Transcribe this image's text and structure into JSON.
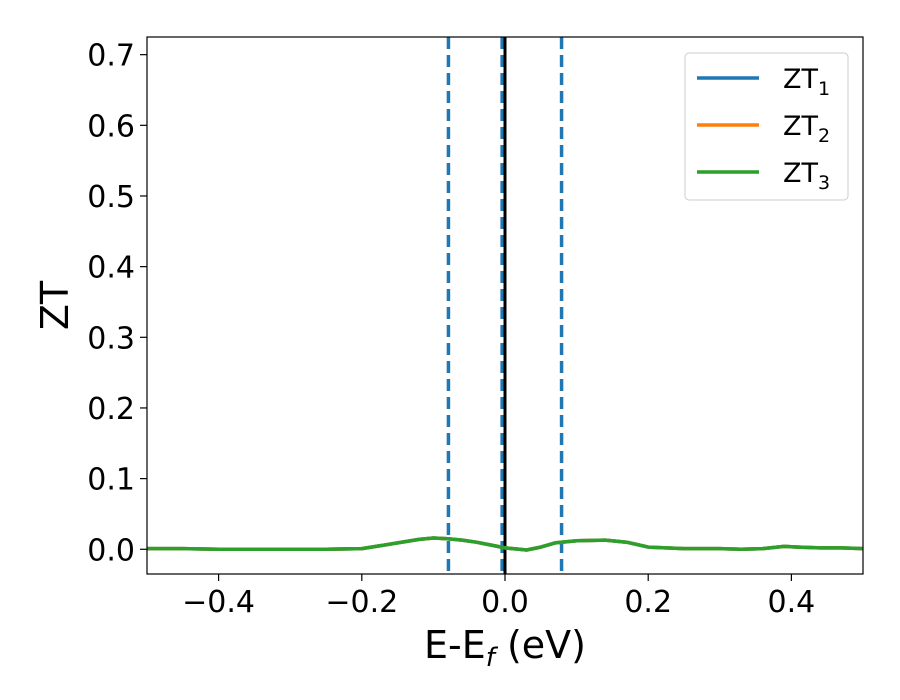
{
  "chart_data": {
    "type": "line",
    "xlabel": {
      "main": "E-E",
      "sub": "f",
      "suffix": " (eV)"
    },
    "ylabel": "ZT",
    "xlim": [
      -0.5,
      0.5
    ],
    "ylim": [
      -0.035,
      0.725
    ],
    "xticks": [
      -0.4,
      -0.2,
      0.0,
      0.2,
      0.4
    ],
    "xtick_labels": [
      "−0.4",
      "−0.2",
      "0.0",
      "0.2",
      "0.4"
    ],
    "yticks": [
      0.0,
      0.1,
      0.2,
      0.3,
      0.4,
      0.5,
      0.6,
      0.7
    ],
    "ytick_labels": [
      "0.0",
      "0.1",
      "0.2",
      "0.3",
      "0.4",
      "0.5",
      "0.6",
      "0.7"
    ],
    "grid": false,
    "legend_position": "top-right",
    "series": [
      {
        "name": "ZT",
        "sub": "1",
        "color": "#1f77b4",
        "x": [
          -0.5,
          -0.45,
          -0.4,
          -0.35,
          -0.3,
          -0.25,
          -0.2,
          -0.18,
          -0.15,
          -0.12,
          -0.1,
          -0.08,
          -0.06,
          -0.04,
          -0.02,
          0.0,
          0.02,
          0.03,
          0.05,
          0.07,
          0.1,
          0.14,
          0.17,
          0.2,
          0.25,
          0.3,
          0.33,
          0.36,
          0.39,
          0.41,
          0.44,
          0.47,
          0.5
        ],
        "y": [
          0.001,
          0.001,
          0.0,
          0.0,
          0.0,
          0.0,
          0.001,
          0.004,
          0.009,
          0.014,
          0.016,
          0.015,
          0.013,
          0.01,
          0.006,
          0.002,
          0.0,
          -0.001,
          0.003,
          0.009,
          0.012,
          0.013,
          0.01,
          0.003,
          0.001,
          0.001,
          0.0,
          0.001,
          0.004,
          0.003,
          0.002,
          0.002,
          0.001
        ]
      },
      {
        "name": "ZT",
        "sub": "2",
        "color": "#ff7f0e",
        "x": [
          -0.5,
          -0.45,
          -0.4,
          -0.35,
          -0.3,
          -0.25,
          -0.2,
          -0.18,
          -0.15,
          -0.12,
          -0.1,
          -0.08,
          -0.06,
          -0.04,
          -0.02,
          0.0,
          0.02,
          0.03,
          0.05,
          0.07,
          0.1,
          0.14,
          0.17,
          0.2,
          0.25,
          0.3,
          0.33,
          0.36,
          0.39,
          0.41,
          0.44,
          0.47,
          0.5
        ],
        "y": [
          0.001,
          0.001,
          0.0,
          0.0,
          0.0,
          0.0,
          0.001,
          0.004,
          0.009,
          0.014,
          0.016,
          0.015,
          0.013,
          0.01,
          0.006,
          0.002,
          0.0,
          -0.001,
          0.003,
          0.009,
          0.012,
          0.013,
          0.01,
          0.003,
          0.001,
          0.001,
          0.0,
          0.001,
          0.004,
          0.003,
          0.002,
          0.002,
          0.001
        ]
      },
      {
        "name": "ZT",
        "sub": "3",
        "color": "#2ca02c",
        "x": [
          -0.5,
          -0.45,
          -0.4,
          -0.35,
          -0.3,
          -0.25,
          -0.2,
          -0.18,
          -0.15,
          -0.12,
          -0.1,
          -0.08,
          -0.06,
          -0.04,
          -0.02,
          0.0,
          0.02,
          0.03,
          0.05,
          0.07,
          0.1,
          0.14,
          0.17,
          0.2,
          0.25,
          0.3,
          0.33,
          0.36,
          0.39,
          0.41,
          0.44,
          0.47,
          0.5
        ],
        "y": [
          0.001,
          0.001,
          0.0,
          0.0,
          0.0,
          0.0,
          0.001,
          0.004,
          0.009,
          0.014,
          0.016,
          0.015,
          0.013,
          0.01,
          0.006,
          0.002,
          0.0,
          -0.001,
          0.003,
          0.009,
          0.012,
          0.013,
          0.01,
          0.003,
          0.001,
          0.001,
          0.0,
          0.001,
          0.004,
          0.003,
          0.002,
          0.002,
          0.001
        ]
      }
    ],
    "vertical_lines": [
      {
        "x": -0.079,
        "color": "#1f77b4",
        "style": "dashed"
      },
      {
        "x": -0.004,
        "color": "#1f77b4",
        "style": "dashed"
      },
      {
        "x": 0.079,
        "color": "#1f77b4",
        "style": "dashed"
      },
      {
        "x": 0.0,
        "color": "#000000",
        "style": "solid"
      }
    ]
  }
}
